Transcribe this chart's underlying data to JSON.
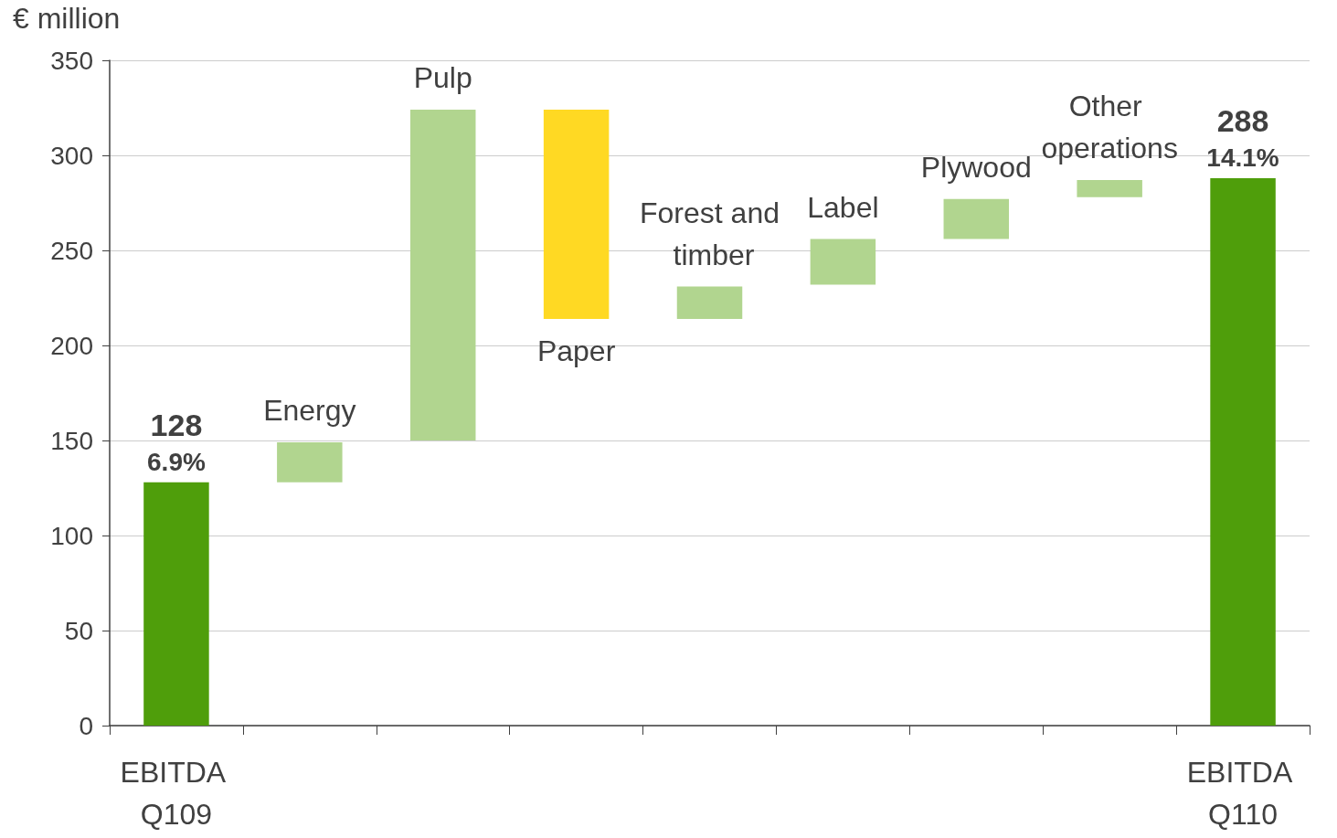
{
  "chart_data": {
    "type": "bar",
    "ylabel": "€ million",
    "categories": [
      "EBITDA Q109",
      "Energy",
      "Pulp",
      "Paper",
      "Forest and timber",
      "Label",
      "Plywood",
      "Other operations",
      "EBITDA Q110"
    ],
    "values": [
      128,
      21,
      174,
      -110,
      17,
      24,
      21,
      9,
      288
    ],
    "base": [
      0,
      128,
      150,
      324,
      214,
      232,
      256,
      278,
      0
    ],
    "colors": [
      "#4f9e0b",
      "#b1d58f",
      "#b1d58f",
      "#ffd923",
      "#b1d58f",
      "#b1d58f",
      "#b1d58f",
      "#b1d58f",
      "#4f9e0b"
    ],
    "value_labels": [
      "128",
      null,
      null,
      null,
      null,
      null,
      null,
      null,
      "288"
    ],
    "annotations": [
      {
        "text": "6.9%",
        "x": "EBITDA Q109",
        "y": 128
      },
      {
        "text": "14.1%",
        "x": "EBITDA Q110",
        "y": 288
      }
    ],
    "ylim": [
      0,
      350
    ],
    "yticks": [
      0,
      50,
      100,
      150,
      200,
      250,
      300,
      350
    ],
    "grid": "y"
  }
}
